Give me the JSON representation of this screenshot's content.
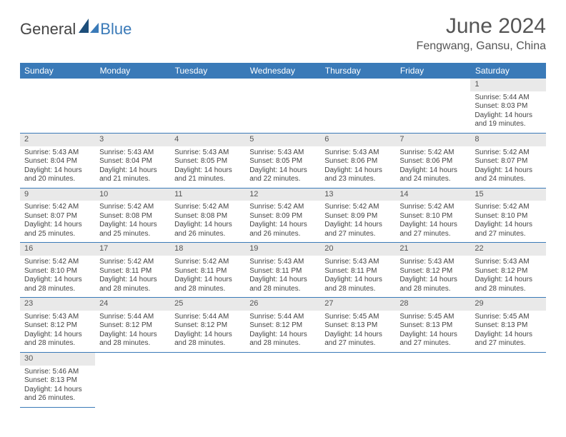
{
  "logo": {
    "general": "General",
    "blue": "Blue"
  },
  "title": "June 2024",
  "location": "Fengwang, Gansu, China",
  "weekdays": [
    "Sunday",
    "Monday",
    "Tuesday",
    "Wednesday",
    "Thursday",
    "Friday",
    "Saturday"
  ],
  "colors": {
    "header_bg": "#3a7ab8",
    "header_text": "#ffffff",
    "daynum_bg": "#e9e9e9",
    "border": "#3a7ab8",
    "logo_blue": "#3a7ab8",
    "logo_dark": "#1d4e7a"
  },
  "weeks": [
    [
      null,
      null,
      null,
      null,
      null,
      null,
      {
        "n": "1",
        "sunrise": "5:44 AM",
        "sunset": "8:03 PM",
        "day_h": "14",
        "day_m": "19"
      }
    ],
    [
      {
        "n": "2",
        "sunrise": "5:43 AM",
        "sunset": "8:04 PM",
        "day_h": "14",
        "day_m": "20"
      },
      {
        "n": "3",
        "sunrise": "5:43 AM",
        "sunset": "8:04 PM",
        "day_h": "14",
        "day_m": "21"
      },
      {
        "n": "4",
        "sunrise": "5:43 AM",
        "sunset": "8:05 PM",
        "day_h": "14",
        "day_m": "21"
      },
      {
        "n": "5",
        "sunrise": "5:43 AM",
        "sunset": "8:05 PM",
        "day_h": "14",
        "day_m": "22"
      },
      {
        "n": "6",
        "sunrise": "5:43 AM",
        "sunset": "8:06 PM",
        "day_h": "14",
        "day_m": "23"
      },
      {
        "n": "7",
        "sunrise": "5:42 AM",
        "sunset": "8:06 PM",
        "day_h": "14",
        "day_m": "24"
      },
      {
        "n": "8",
        "sunrise": "5:42 AM",
        "sunset": "8:07 PM",
        "day_h": "14",
        "day_m": "24"
      }
    ],
    [
      {
        "n": "9",
        "sunrise": "5:42 AM",
        "sunset": "8:07 PM",
        "day_h": "14",
        "day_m": "25"
      },
      {
        "n": "10",
        "sunrise": "5:42 AM",
        "sunset": "8:08 PM",
        "day_h": "14",
        "day_m": "25"
      },
      {
        "n": "11",
        "sunrise": "5:42 AM",
        "sunset": "8:08 PM",
        "day_h": "14",
        "day_m": "26"
      },
      {
        "n": "12",
        "sunrise": "5:42 AM",
        "sunset": "8:09 PM",
        "day_h": "14",
        "day_m": "26"
      },
      {
        "n": "13",
        "sunrise": "5:42 AM",
        "sunset": "8:09 PM",
        "day_h": "14",
        "day_m": "27"
      },
      {
        "n": "14",
        "sunrise": "5:42 AM",
        "sunset": "8:10 PM",
        "day_h": "14",
        "day_m": "27"
      },
      {
        "n": "15",
        "sunrise": "5:42 AM",
        "sunset": "8:10 PM",
        "day_h": "14",
        "day_m": "27"
      }
    ],
    [
      {
        "n": "16",
        "sunrise": "5:42 AM",
        "sunset": "8:10 PM",
        "day_h": "14",
        "day_m": "28"
      },
      {
        "n": "17",
        "sunrise": "5:42 AM",
        "sunset": "8:11 PM",
        "day_h": "14",
        "day_m": "28"
      },
      {
        "n": "18",
        "sunrise": "5:42 AM",
        "sunset": "8:11 PM",
        "day_h": "14",
        "day_m": "28"
      },
      {
        "n": "19",
        "sunrise": "5:43 AM",
        "sunset": "8:11 PM",
        "day_h": "14",
        "day_m": "28"
      },
      {
        "n": "20",
        "sunrise": "5:43 AM",
        "sunset": "8:11 PM",
        "day_h": "14",
        "day_m": "28"
      },
      {
        "n": "21",
        "sunrise": "5:43 AM",
        "sunset": "8:12 PM",
        "day_h": "14",
        "day_m": "28"
      },
      {
        "n": "22",
        "sunrise": "5:43 AM",
        "sunset": "8:12 PM",
        "day_h": "14",
        "day_m": "28"
      }
    ],
    [
      {
        "n": "23",
        "sunrise": "5:43 AM",
        "sunset": "8:12 PM",
        "day_h": "14",
        "day_m": "28"
      },
      {
        "n": "24",
        "sunrise": "5:44 AM",
        "sunset": "8:12 PM",
        "day_h": "14",
        "day_m": "28"
      },
      {
        "n": "25",
        "sunrise": "5:44 AM",
        "sunset": "8:12 PM",
        "day_h": "14",
        "day_m": "28"
      },
      {
        "n": "26",
        "sunrise": "5:44 AM",
        "sunset": "8:12 PM",
        "day_h": "14",
        "day_m": "28"
      },
      {
        "n": "27",
        "sunrise": "5:45 AM",
        "sunset": "8:13 PM",
        "day_h": "14",
        "day_m": "27"
      },
      {
        "n": "28",
        "sunrise": "5:45 AM",
        "sunset": "8:13 PM",
        "day_h": "14",
        "day_m": "27"
      },
      {
        "n": "29",
        "sunrise": "5:45 AM",
        "sunset": "8:13 PM",
        "day_h": "14",
        "day_m": "27"
      }
    ],
    [
      {
        "n": "30",
        "sunrise": "5:46 AM",
        "sunset": "8:13 PM",
        "day_h": "14",
        "day_m": "26"
      },
      null,
      null,
      null,
      null,
      null,
      null
    ]
  ],
  "labels": {
    "sunrise_prefix": "Sunrise: ",
    "sunset_prefix": "Sunset: ",
    "daylight_prefix": "Daylight: ",
    "hours_word": " hours",
    "and_word": "and ",
    "minutes_word": " minutes."
  }
}
